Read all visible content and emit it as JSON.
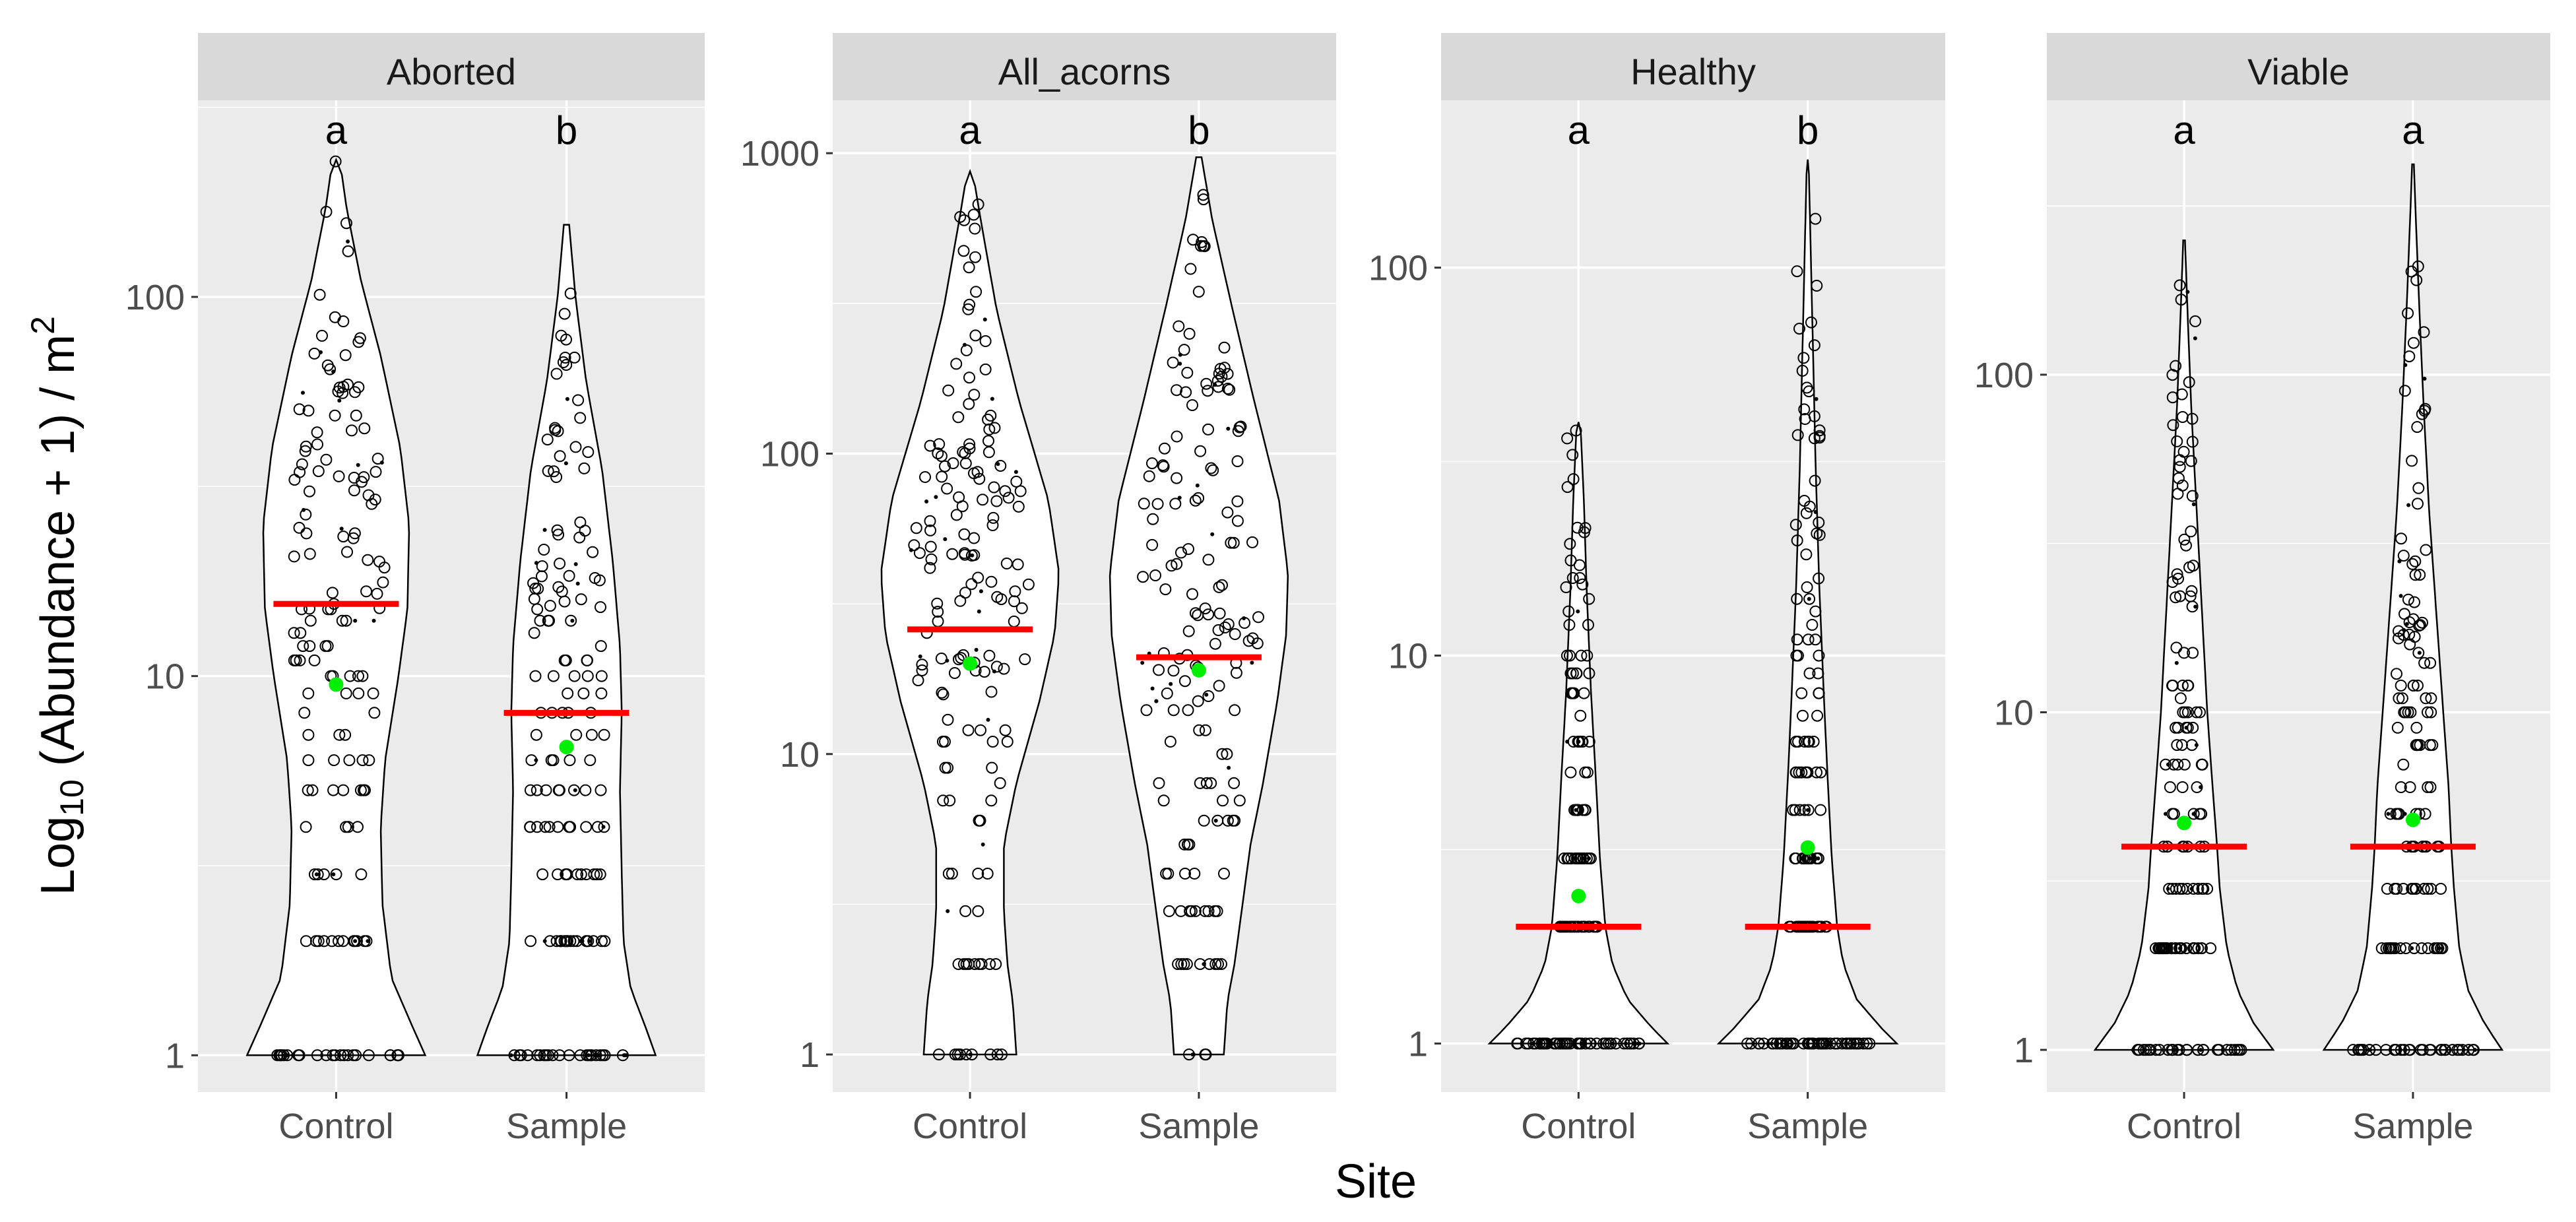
{
  "chart_data": {
    "type": "violin",
    "x_axis_title": "Site",
    "y_axis_title": {
      "prefix": "Log",
      "subscript": "10",
      "middle": " (Abundance + 1) / m",
      "superscript": "2"
    },
    "y_scale": "log10(y)",
    "categories": [
      "Control",
      "Sample"
    ],
    "legend": "none",
    "markers": {
      "red_bar": "median",
      "green_point": "mean"
    },
    "colors": {
      "panel_background": "#ebebeb",
      "grid_major": "#ffffff",
      "strip_background": "#d9d9d9",
      "median": "#ff0000",
      "mean": "#00ee00",
      "outline": "#000000"
    },
    "facets": [
      {
        "name": "Aborted",
        "ylim": [
          0.8,
          330
        ],
        "y_ticks": [
          1,
          10,
          100
        ],
        "y_tick_labels": [
          "1",
          "10",
          "100"
        ],
        "groups": [
          {
            "site": "Control",
            "letter": "a",
            "max": 230,
            "median": 15.5,
            "mean": 9.5,
            "density": [
              [
                1,
                1.0
              ],
              [
                1.2,
                0.85
              ],
              [
                1.6,
                0.62
              ],
              [
                2.5,
                0.52
              ],
              [
                4,
                0.5
              ],
              [
                6,
                0.55
              ],
              [
                10,
                0.7
              ],
              [
                15,
                0.8
              ],
              [
                25,
                0.82
              ],
              [
                40,
                0.72
              ],
              [
                70,
                0.5
              ],
              [
                110,
                0.28
              ],
              [
                170,
                0.12
              ],
              [
                230,
                0.04
              ]
            ]
          },
          {
            "site": "Sample",
            "letter": "b",
            "max": 155,
            "median": 8,
            "mean": 6.5,
            "density": [
              [
                1,
                1.0
              ],
              [
                1.2,
                0.88
              ],
              [
                1.5,
                0.72
              ],
              [
                2,
                0.64
              ],
              [
                3,
                0.62
              ],
              [
                5,
                0.6
              ],
              [
                8,
                0.62
              ],
              [
                12,
                0.6
              ],
              [
                20,
                0.52
              ],
              [
                35,
                0.4
              ],
              [
                60,
                0.22
              ],
              [
                100,
                0.1
              ],
              [
                155,
                0.03
              ]
            ]
          }
        ]
      },
      {
        "name": "All_acorns",
        "ylim": [
          0.75,
          1500
        ],
        "y_ticks": [
          1,
          10,
          100,
          1000
        ],
        "y_tick_labels": [
          "1",
          "10",
          "100",
          "1000"
        ],
        "groups": [
          {
            "site": "Control",
            "letter": "a",
            "max": 870,
            "median": 26,
            "mean": 20,
            "density": [
              [
                1,
                0.52
              ],
              [
                1.5,
                0.48
              ],
              [
                2,
                0.42
              ],
              [
                3,
                0.38
              ],
              [
                5,
                0.38
              ],
              [
                8,
                0.52
              ],
              [
                15,
                0.78
              ],
              [
                25,
                0.95
              ],
              [
                40,
                1.0
              ],
              [
                70,
                0.88
              ],
              [
                150,
                0.55
              ],
              [
                300,
                0.3
              ],
              [
                600,
                0.12
              ],
              [
                870,
                0.03
              ]
            ]
          },
          {
            "site": "Sample",
            "letter": "b",
            "max": 970,
            "median": 21,
            "mean": 19,
            "density": [
              [
                1,
                0.28
              ],
              [
                1.5,
                0.32
              ],
              [
                2,
                0.4
              ],
              [
                3,
                0.48
              ],
              [
                5,
                0.58
              ],
              [
                8,
                0.72
              ],
              [
                15,
                0.88
              ],
              [
                25,
                0.98
              ],
              [
                40,
                1.0
              ],
              [
                70,
                0.9
              ],
              [
                150,
                0.62
              ],
              [
                300,
                0.38
              ],
              [
                600,
                0.15
              ],
              [
                970,
                0.03
              ]
            ]
          }
        ]
      },
      {
        "name": "Healthy",
        "ylim": [
          0.75,
          270
        ],
        "y_ticks": [
          1,
          10,
          100
        ],
        "y_tick_labels": [
          "1",
          "10",
          "100"
        ],
        "groups": [
          {
            "site": "Control",
            "letter": "a",
            "max": 40,
            "median": 2,
            "mean": 2.4,
            "density": [
              [
                1,
                1.0
              ],
              [
                1.1,
                0.82
              ],
              [
                1.3,
                0.55
              ],
              [
                1.6,
                0.38
              ],
              [
                2,
                0.3
              ],
              [
                3,
                0.24
              ],
              [
                5,
                0.19
              ],
              [
                8,
                0.14
              ],
              [
                15,
                0.09
              ],
              [
                25,
                0.06
              ],
              [
                40,
                0.02
              ]
            ]
          },
          {
            "site": "Sample",
            "letter": "b",
            "max": 190,
            "median": 2,
            "mean": 3.2,
            "density": [
              [
                1,
                1.0
              ],
              [
                1.1,
                0.82
              ],
              [
                1.3,
                0.55
              ],
              [
                1.6,
                0.4
              ],
              [
                2,
                0.33
              ],
              [
                3,
                0.27
              ],
              [
                5,
                0.22
              ],
              [
                8,
                0.18
              ],
              [
                15,
                0.13
              ],
              [
                30,
                0.09
              ],
              [
                60,
                0.06
              ],
              [
                120,
                0.03
              ],
              [
                190,
                0.01
              ]
            ]
          }
        ]
      },
      {
        "name": "Viable",
        "ylim": [
          0.75,
          650
        ],
        "y_ticks": [
          1,
          10,
          100
        ],
        "y_tick_labels": [
          "1",
          "10",
          "100"
        ],
        "groups": [
          {
            "site": "Control",
            "letter": "a",
            "max": 250,
            "median": 4,
            "mean": 4.7,
            "density": [
              [
                1,
                1.0
              ],
              [
                1.2,
                0.78
              ],
              [
                1.5,
                0.6
              ],
              [
                2,
                0.48
              ],
              [
                3,
                0.4
              ],
              [
                4,
                0.37
              ],
              [
                6,
                0.32
              ],
              [
                10,
                0.26
              ],
              [
                20,
                0.2
              ],
              [
                40,
                0.14
              ],
              [
                80,
                0.08
              ],
              [
                150,
                0.04
              ],
              [
                250,
                0.01
              ]
            ]
          },
          {
            "site": "Sample",
            "letter": "a",
            "max": 420,
            "median": 4,
            "mean": 4.8,
            "density": [
              [
                1,
                1.0
              ],
              [
                1.2,
                0.8
              ],
              [
                1.5,
                0.62
              ],
              [
                2,
                0.52
              ],
              [
                3,
                0.46
              ],
              [
                4,
                0.43
              ],
              [
                6,
                0.4
              ],
              [
                10,
                0.34
              ],
              [
                20,
                0.26
              ],
              [
                40,
                0.18
              ],
              [
                80,
                0.12
              ],
              [
                160,
                0.07
              ],
              [
                300,
                0.03
              ],
              [
                420,
                0.01
              ]
            ]
          }
        ]
      }
    ]
  }
}
